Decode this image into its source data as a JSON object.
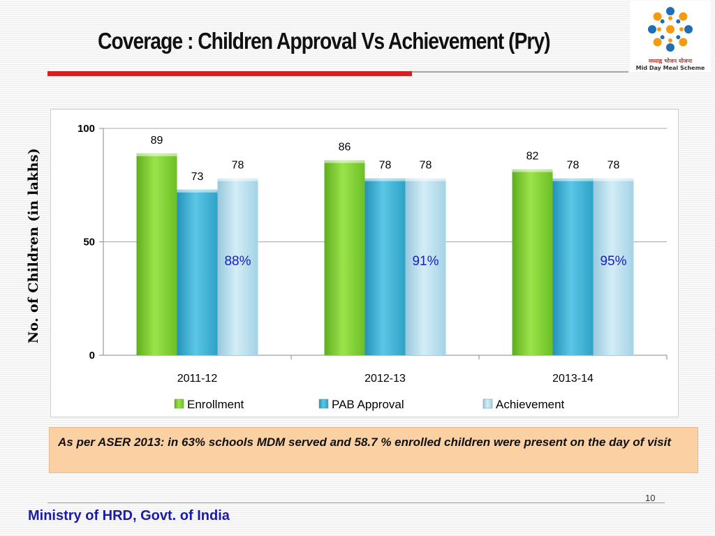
{
  "slide": {
    "title": "Coverage : Children Approval Vs Achievement (Pry)",
    "logo": {
      "icon": "mid-day-meal-logo-icon",
      "caption_hindi": "मध्याह्न भोजन योजना",
      "caption_english": "Mid Day Meal Scheme",
      "colors": [
        "#1f6fb5",
        "#f39c12"
      ]
    },
    "note": "As per ASER 2013: in 63% schools MDM served and 58.7 % enrolled children were present on the day of visit",
    "page_number": "10",
    "footer": "Ministry of HRD, Govt. of India"
  },
  "chart_data": {
    "type": "bar",
    "title": "",
    "xlabel": "",
    "ylabel": "No. of Children (in lakhs)",
    "ylim": [
      0,
      100
    ],
    "yticks": [
      "0",
      "50",
      "100"
    ],
    "grid": true,
    "legend_position": "bottom",
    "categories": [
      "2011-12",
      "2012-13",
      "2013-14"
    ],
    "series": [
      {
        "name": "Enrollment",
        "values": [
          89,
          86,
          82
        ],
        "labels": [
          "89",
          "86",
          "82"
        ],
        "color": "#86d13a"
      },
      {
        "name": "PAB Approval",
        "values": [
          73,
          78,
          78
        ],
        "labels": [
          "73",
          "78",
          "78"
        ],
        "color": "#3eb4d8"
      },
      {
        "name": "Achievement",
        "values": [
          78,
          78,
          78
        ],
        "labels": [
          "78",
          "78",
          "78"
        ],
        "color": "#b8dfee"
      }
    ],
    "annotations": [
      {
        "category": "2011-12",
        "text": "88%",
        "color": "#1a1acc"
      },
      {
        "category": "2012-13",
        "text": "91%",
        "color": "#1a1acc"
      },
      {
        "category": "2013-14",
        "text": "95%",
        "color": "#1a1acc"
      }
    ]
  }
}
